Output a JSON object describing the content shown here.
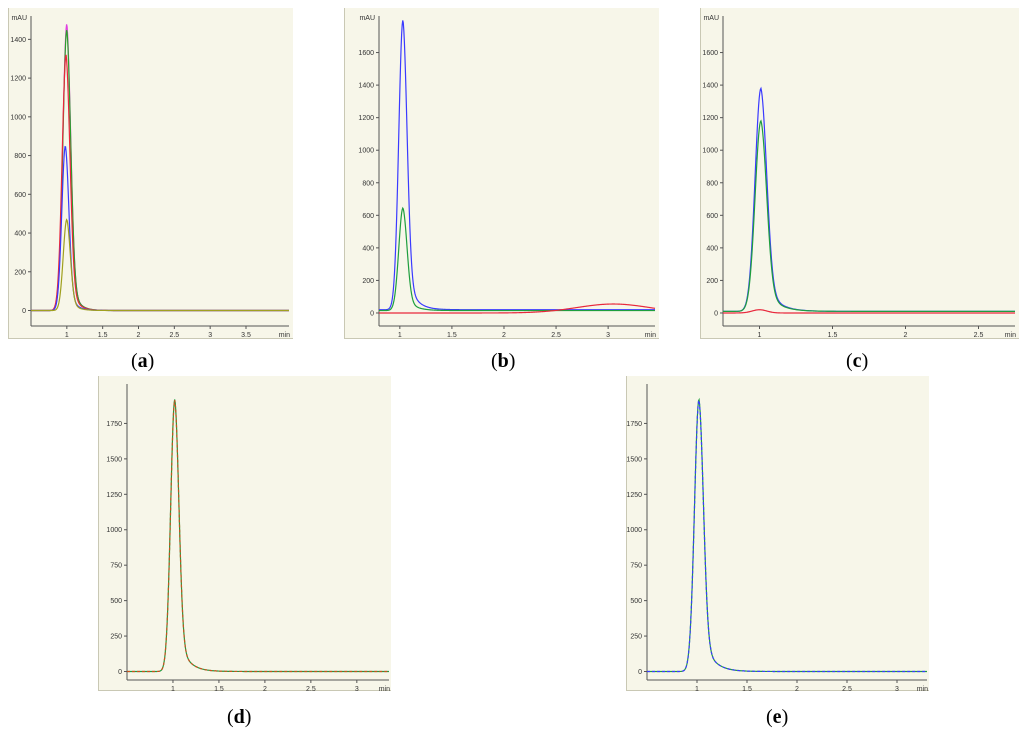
{
  "figure": {
    "captions": [
      {
        "open": "(",
        "letter": "a",
        "close": ")"
      },
      {
        "open": "(",
        "letter": "b",
        "close": ")"
      },
      {
        "open": "(",
        "letter": "c",
        "close": ")"
      },
      {
        "open": "(",
        "letter": "d",
        "close": ")"
      },
      {
        "open": "(",
        "letter": "e",
        "close": ")"
      }
    ]
  },
  "chart_data": [
    {
      "type": "line",
      "panel": "a",
      "ylabel": "mAU",
      "xlabel": "min",
      "xlim": [
        0.5,
        4.1
      ],
      "ylim": [
        -80,
        1500
      ],
      "yticks": [
        0,
        200,
        400,
        600,
        800,
        1000,
        1200,
        1400
      ],
      "xticks": [
        1,
        1.5,
        2,
        2.5,
        3,
        3.5
      ],
      "xtick_labels": [
        "1",
        "1.5",
        "2",
        "2.5",
        "3",
        "3.5"
      ],
      "series": [
        {
          "color": "#e040e0",
          "peak_time": 1.0,
          "peak": 1480,
          "width": 0.055,
          "tail": 0.09,
          "baseline": 0
        },
        {
          "color": "#2ca02c",
          "peak_time": 1.0,
          "peak": 1450,
          "width": 0.055,
          "tail": 0.09,
          "baseline": 0
        },
        {
          "color": "#e8283c",
          "peak_time": 0.99,
          "peak": 1320,
          "width": 0.055,
          "tail": 0.09,
          "baseline": 0
        },
        {
          "color": "#3a3aff",
          "peak_time": 0.98,
          "peak": 850,
          "width": 0.05,
          "tail": 0.09,
          "baseline": 0
        },
        {
          "color": "#a0a020",
          "peak_time": 1.0,
          "peak": 470,
          "width": 0.05,
          "tail": 0.09,
          "baseline": 0
        }
      ]
    },
    {
      "type": "line",
      "panel": "b",
      "ylabel": "mAU",
      "xlabel": "min",
      "xlim": [
        0.8,
        3.45
      ],
      "ylim": [
        -80,
        1800
      ],
      "yticks": [
        0,
        200,
        400,
        600,
        800,
        1000,
        1200,
        1400,
        1600
      ],
      "xticks": [
        1,
        1.5,
        2,
        2.5,
        3
      ],
      "xtick_labels": [
        "1",
        "1.5",
        "2",
        "2.5",
        "3"
      ],
      "series": [
        {
          "color": "#3a3aff",
          "peak_time": 1.03,
          "peak": 1780,
          "width": 0.04,
          "tail": 0.08,
          "baseline": 20
        },
        {
          "color": "#1e9e3e",
          "peak_time": 1.03,
          "peak": 630,
          "width": 0.04,
          "tail": 0.08,
          "baseline": 15
        },
        {
          "color": "#e8283c",
          "peak_time": 3.05,
          "peak": 55,
          "width": 0.35,
          "tail": 0.0,
          "baseline": 0
        }
      ]
    },
    {
      "type": "line",
      "panel": "c",
      "ylabel": "mAU",
      "xlabel": "min",
      "xlim": [
        0.75,
        2.75
      ],
      "ylim": [
        -80,
        1800
      ],
      "yticks": [
        0,
        200,
        400,
        600,
        800,
        1000,
        1200,
        1400,
        1600
      ],
      "xticks": [
        1,
        1.5,
        2,
        2.5
      ],
      "xtick_labels": [
        "1",
        "1.5",
        "2",
        "2.5"
      ],
      "series": [
        {
          "color": "#3a3aff",
          "peak_time": 1.01,
          "peak": 1370,
          "width": 0.04,
          "tail": 0.08,
          "baseline": 10
        },
        {
          "color": "#1e9e3e",
          "peak_time": 1.01,
          "peak": 1170,
          "width": 0.04,
          "tail": 0.08,
          "baseline": 10
        },
        {
          "color": "#e8283c",
          "peak_time": 1.0,
          "peak": 20,
          "width": 0.05,
          "tail": 0.0,
          "baseline": 0
        }
      ]
    },
    {
      "type": "line",
      "panel": "d",
      "ylabel": "",
      "xlabel": "min",
      "xlim": [
        0.5,
        3.35
      ],
      "ylim": [
        -60,
        2000
      ],
      "yticks": [
        0,
        250,
        500,
        750,
        1000,
        1250,
        1500,
        1750
      ],
      "xticks": [
        1,
        1.5,
        2,
        2.5,
        3
      ],
      "xtick_labels": [
        "1",
        "1.5",
        "2",
        "2.5",
        "3"
      ],
      "series": [
        {
          "color": "#1e9e3e",
          "peak_time": 1.02,
          "peak": 1920,
          "width": 0.045,
          "tail": 0.1,
          "baseline": 0
        },
        {
          "color": "#c8501e",
          "peak_time": 1.02,
          "peak": 1915,
          "width": 0.045,
          "tail": 0.1,
          "baseline": 0,
          "dash": true
        }
      ]
    },
    {
      "type": "line",
      "panel": "e",
      "ylabel": "",
      "xlabel": "min",
      "xlim": [
        0.5,
        3.3
      ],
      "ylim": [
        -60,
        2000
      ],
      "yticks": [
        0,
        250,
        500,
        750,
        1000,
        1250,
        1500,
        1750
      ],
      "xticks": [
        1,
        1.5,
        2,
        2.5,
        3
      ],
      "xtick_labels": [
        "1",
        "1.5",
        "2",
        "2.5",
        "3"
      ],
      "series": [
        {
          "color": "#1e9e3e",
          "peak_time": 1.02,
          "peak": 1920,
          "width": 0.045,
          "tail": 0.1,
          "baseline": 0
        },
        {
          "color": "#3a3aff",
          "peak_time": 1.02,
          "peak": 1915,
          "width": 0.045,
          "tail": 0.1,
          "baseline": 0,
          "dash": true
        }
      ]
    }
  ]
}
